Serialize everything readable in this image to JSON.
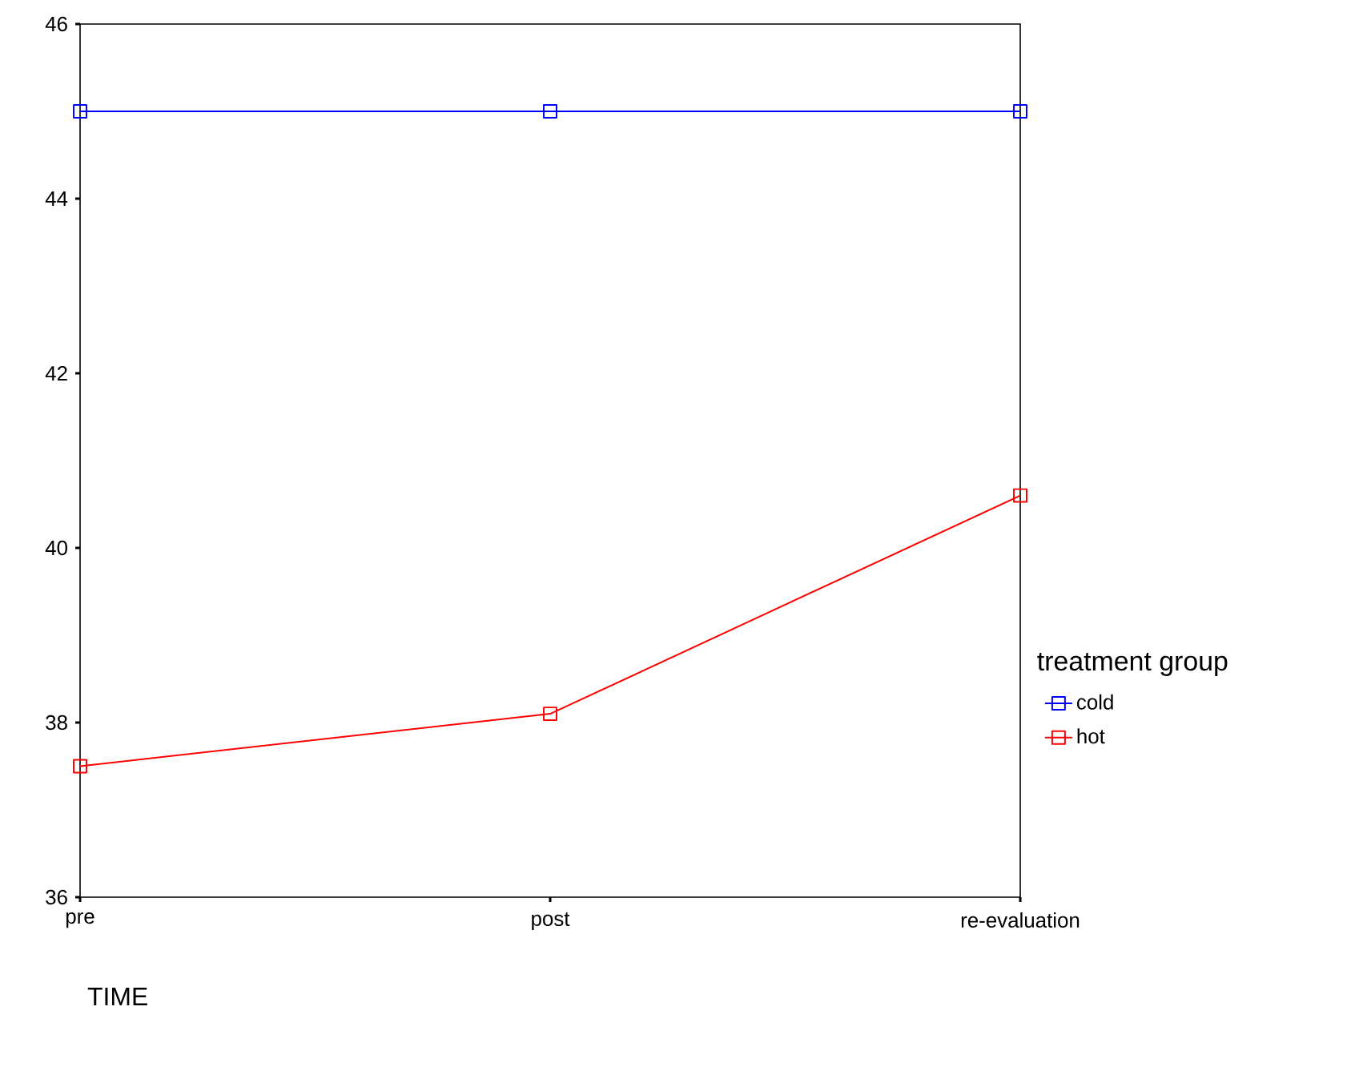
{
  "chart_data": {
    "type": "line",
    "xlabel": "TIME",
    "legend_title": "treatment group",
    "categories": [
      "pre",
      "post",
      "re-evaluation"
    ],
    "series": [
      {
        "name": "cold",
        "color": "#0000ff",
        "values": [
          45.0,
          45.0,
          45.0
        ]
      },
      {
        "name": "hot",
        "color": "#ff0000",
        "values": [
          37.5,
          38.1,
          40.6
        ]
      }
    ],
    "ylim": [
      36,
      46
    ],
    "yticks": [
      36,
      38,
      40,
      42,
      44,
      46
    ],
    "grid": false,
    "legend": "right",
    "marker": "square",
    "line_style": "solid"
  }
}
